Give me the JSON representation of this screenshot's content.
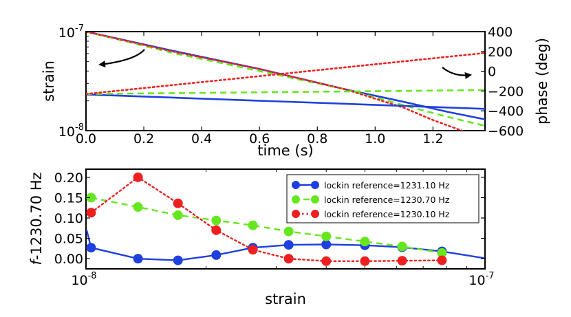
{
  "chart_data": [
    {
      "type": "line",
      "panel": "top",
      "xlabel": "time (s)",
      "ylabel": "strain",
      "y2label": "phase (deg)",
      "xlim": [
        0.0,
        1.38
      ],
      "ylim_log10": [
        -8,
        -7
      ],
      "y2lim": [
        -600,
        400
      ],
      "x_ticks": [
        0.0,
        0.2,
        0.4,
        0.6,
        0.8,
        1.0,
        1.2
      ],
      "x_tick_labels": [
        "0.0",
        "0.2",
        "0.4",
        "0.6",
        "0.8",
        "1.0",
        "1.2"
      ],
      "y_tick_labels": [
        {
          "base": "10",
          "exp": "-8"
        },
        {
          "base": "10",
          "exp": "-7"
        }
      ],
      "y2_ticks": [
        -600,
        -400,
        -200,
        0,
        200,
        400
      ],
      "y2_tick_labels": [
        "−600",
        "−400",
        "−200",
        "0",
        "200",
        "400"
      ],
      "annotations": [
        {
          "name": "left-arrow",
          "points_to": "strain axis"
        },
        {
          "name": "right-arrow",
          "points_to": "phase axis"
        }
      ],
      "series": [
        {
          "name": "strain-blue",
          "axis": "left",
          "color": "#1f3fe0",
          "style": "solid",
          "x": [
            0.0,
            0.3,
            0.6,
            0.9,
            1.1,
            1.25,
            1.38
          ],
          "strain": [
            1e-07,
            6.4e-08,
            4.2e-08,
            2.6e-08,
            1.95e-08,
            1.55e-08,
            1.3e-08
          ]
        },
        {
          "name": "strain-green",
          "axis": "left",
          "color": "#66e61f",
          "style": "dashed",
          "x": [
            0.0,
            0.3,
            0.6,
            0.9,
            1.1,
            1.25,
            1.38
          ],
          "strain": [
            1e-07,
            6.1e-08,
            4e-08,
            2.6e-08,
            1.8e-08,
            1.38e-08,
            1.12e-08
          ]
        },
        {
          "name": "strain-red",
          "axis": "left",
          "color": "#ee1f1f",
          "style": "dotted",
          "x": [
            0.0,
            0.3,
            0.6,
            0.9,
            1.1,
            1.2,
            1.3
          ],
          "strain": [
            1e-07,
            6.3e-08,
            4.2e-08,
            2.6e-08,
            1.7e-08,
            1.28e-08,
            1e-08
          ]
        },
        {
          "name": "phase-blue",
          "axis": "right",
          "color": "#1f3fe0",
          "style": "solid",
          "x": [
            0.0,
            1.38
          ],
          "phase": [
            -235,
            -380
          ]
        },
        {
          "name": "phase-green",
          "axis": "right",
          "color": "#66e61f",
          "style": "dashed",
          "x": [
            0.0,
            1.38
          ],
          "phase": [
            -230,
            -190
          ]
        },
        {
          "name": "phase-red",
          "axis": "right",
          "color": "#ee1f1f",
          "style": "dotted",
          "x": [
            0.0,
            1.38
          ],
          "phase": [
            -230,
            185
          ]
        }
      ]
    },
    {
      "type": "line",
      "panel": "bottom",
      "xlabel": "strain",
      "ylabel": "f-1230.70 Hz",
      "xscale": "log",
      "xlim_log10": [
        -8,
        -7
      ],
      "ylim": [
        -0.025,
        0.22
      ],
      "y_ticks": [
        0.0,
        0.05,
        0.1,
        0.15,
        0.2
      ],
      "y_tick_labels": [
        "0.00",
        "0.05",
        "0.10",
        "0.15",
        "0.20"
      ],
      "x_tick_labels": [
        {
          "base": "10",
          "exp": "-8"
        },
        {
          "base": "10",
          "exp": "-7"
        }
      ],
      "legend": "top-right",
      "series": [
        {
          "name": "lockin reference=1231.10 Hz",
          "color": "#1f3fe0",
          "style": "solid",
          "x": [
            1.03e-08,
            1.35e-08,
            1.7e-08,
            2.12e-08,
            2.62e-08,
            3.22e-08,
            4e-08,
            5e-08,
            6.2e-08,
            7.8e-08
          ],
          "y": [
            0.027,
            0.0,
            -0.004,
            0.009,
            0.027,
            0.034,
            0.035,
            0.033,
            0.028,
            0.018
          ],
          "line_end": {
            "x": 1e-07,
            "y": 0.001
          }
        },
        {
          "name": "lockin reference=1230.70 Hz",
          "color": "#66e61f",
          "style": "dashed",
          "x": [
            1.03e-08,
            1.35e-08,
            1.7e-08,
            2.12e-08,
            2.62e-08,
            3.22e-08,
            4e-08,
            5e-08,
            6.2e-08,
            7.8e-08
          ],
          "y": [
            0.15,
            0.127,
            0.107,
            0.094,
            0.082,
            0.067,
            0.055,
            0.042,
            0.03,
            0.014
          ]
        },
        {
          "name": "lockin reference=1230.10 Hz",
          "color": "#ee1f1f",
          "style": "dotted",
          "x": [
            1.03e-08,
            1.35e-08,
            1.7e-08,
            2.12e-08,
            2.62e-08,
            3.22e-08,
            4e-08,
            5e-08,
            6.2e-08,
            7.8e-08
          ],
          "y": [
            0.113,
            0.2,
            0.136,
            0.07,
            0.022,
            0.0,
            -0.006,
            -0.006,
            -0.005,
            -0.004
          ]
        }
      ]
    }
  ]
}
